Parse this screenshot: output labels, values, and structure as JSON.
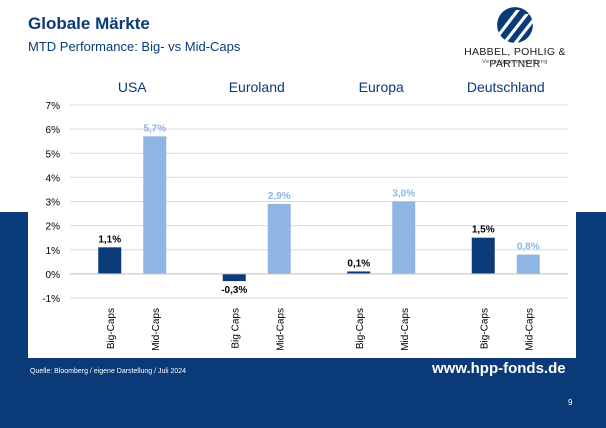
{
  "header": {
    "title": "Globale Märkte",
    "subtitle": "MTD Performance: Big- vs Mid-Caps"
  },
  "logo": {
    "name": "HABBEL, POHLIG & PARTNER",
    "tagline": "Vermögensverwaltung"
  },
  "footer": {
    "source": "Quelle: Bloomberg / eigene Darstellung /   Juli 2024",
    "url": "www.hpp-fonds.de",
    "page_number": "9"
  },
  "colors": {
    "brand_blue": "#0b3a78",
    "big_caps": "#0b3a78",
    "mid_caps": "#8fb5e3",
    "mid_caps_label": "#8fb5e3"
  },
  "chart_data": {
    "type": "bar",
    "groups": [
      "USA",
      "Euroland",
      "Europa",
      "Deutschland"
    ],
    "ylim": [
      -1,
      7
    ],
    "yticks": [
      -1,
      0,
      1,
      2,
      3,
      4,
      5,
      6,
      7
    ],
    "ytick_labels": [
      "-1%",
      "0%",
      "1%",
      "2%",
      "3%",
      "4%",
      "5%",
      "6%",
      "7%"
    ],
    "grid": true,
    "bars": [
      {
        "group": "USA",
        "category": "Big-Caps",
        "value": 1.1,
        "label": "1,1%",
        "series": "big"
      },
      {
        "group": "USA",
        "category": "Mid-Caps",
        "value": 5.7,
        "label": "5,7%",
        "series": "mid"
      },
      {
        "group": "Euroland",
        "category": "Big Caps",
        "value": -0.3,
        "label": "-0,3%",
        "series": "big"
      },
      {
        "group": "Euroland",
        "category": "Mid-Caps",
        "value": 2.9,
        "label": "2,9%",
        "series": "mid"
      },
      {
        "group": "Europa",
        "category": "Big-Caps",
        "value": 0.1,
        "label": "0,1%",
        "series": "big"
      },
      {
        "group": "Europa",
        "category": "Mid-Caps",
        "value": 3.0,
        "label": "3,0%",
        "series": "mid"
      },
      {
        "group": "Deutschland",
        "category": "Big-Caps",
        "value": 1.5,
        "label": "1,5%",
        "series": "big"
      },
      {
        "group": "Deutschland",
        "category": "Mid-Caps",
        "value": 0.8,
        "label": "0,8%",
        "series": "mid"
      }
    ]
  }
}
